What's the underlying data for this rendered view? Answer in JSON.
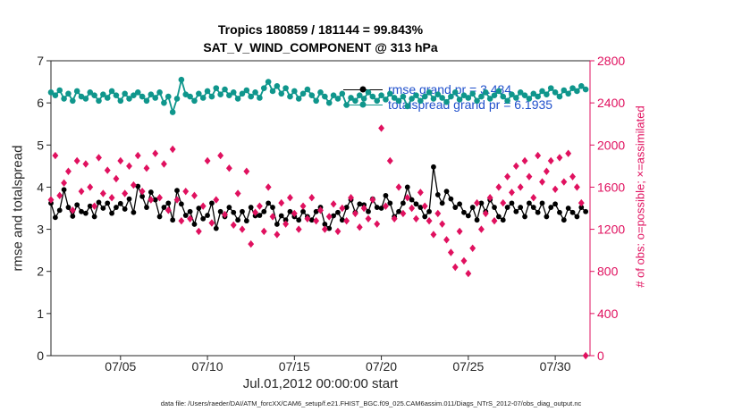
{
  "caption": "data file: /Users/raeder/DAI/ATM_forcXX/CAM6_setup/f.e21.FHIST_BGC.f09_025.CAM6assim.011/Diags_NTrS_2012-07/obs_diag_output.nc",
  "colors": {
    "rmse": "#000000",
    "totalspread": "#0f968c",
    "obs": "#e0115f",
    "legend_text": "#2050cc",
    "axis_text": "#262626"
  },
  "chart_data": {
    "type": "line",
    "title": "Tropics 180859 / 181144 = 99.843%",
    "subtitle": "SAT_V_WIND_COMPONENT @ 313 hPa",
    "xlabel": "Jul.01,2012 00:00:00 start",
    "ylabel_left": "rmse and totalspread",
    "ylabel_right": "# of obs: o=possible; ×=assimilated",
    "x_range_days": [
      0,
      31
    ],
    "x_step_days": 0.25,
    "x_ticks": {
      "days": [
        4,
        9,
        14,
        19,
        24,
        29
      ],
      "labels": [
        "07/05",
        "07/10",
        "07/15",
        "07/20",
        "07/25",
        "07/30"
      ]
    },
    "y_left": {
      "min": 0,
      "max": 7,
      "ticks": [
        0,
        1,
        2,
        3,
        4,
        5,
        6,
        7
      ]
    },
    "y_right": {
      "min": 0,
      "max": 2800,
      "ticks": [
        0,
        400,
        800,
        1200,
        1600,
        2000,
        2400,
        2800
      ]
    },
    "legend": [
      {
        "label": "rmse grand pr = 3.484",
        "color": "#000000"
      },
      {
        "label": "totalspread grand pr = 6.1935",
        "color": "#0f968c"
      }
    ],
    "series": [
      {
        "name": "rmse",
        "axis": "left",
        "color": "#000000",
        "marker": "circle",
        "line": true,
        "values": [
          3.62,
          3.28,
          3.45,
          3.94,
          3.52,
          3.31,
          3.58,
          3.42,
          3.38,
          3.55,
          3.3,
          3.64,
          3.5,
          3.62,
          3.38,
          3.52,
          3.61,
          3.48,
          3.72,
          3.4,
          4.02,
          3.78,
          3.52,
          3.88,
          3.7,
          3.3,
          3.52,
          3.62,
          3.22,
          3.92,
          3.6,
          3.33,
          3.42,
          3.12,
          3.5,
          3.25,
          3.33,
          3.62,
          3.02,
          3.42,
          3.3,
          3.52,
          3.4,
          3.22,
          3.42,
          3.2,
          3.52,
          3.32,
          3.33,
          3.42,
          3.62,
          3.52,
          3.12,
          3.32,
          3.22,
          3.42,
          3.3,
          3.22,
          3.42,
          3.3,
          3.22,
          3.42,
          3.52,
          3.12,
          3.02,
          3.32,
          3.4,
          3.22,
          3.52,
          3.7,
          3.4,
          3.6,
          3.58,
          3.42,
          3.72,
          3.52,
          3.5,
          3.8,
          3.62,
          3.3,
          3.42,
          3.62,
          4.0,
          3.7,
          3.6,
          3.52,
          3.3,
          3.42,
          4.48,
          3.82,
          3.62,
          3.9,
          3.72,
          3.52,
          3.6,
          3.4,
          3.32,
          3.52,
          3.22,
          3.62,
          3.42,
          3.7,
          3.52,
          3.3,
          3.22,
          3.52,
          3.62,
          3.42,
          3.52,
          3.3,
          3.62,
          3.52,
          3.4,
          3.62,
          3.3,
          3.52,
          3.6,
          3.4,
          3.22,
          3.5,
          3.4,
          3.3,
          3.52,
          3.42
        ]
      },
      {
        "name": "totalspread",
        "axis": "left",
        "color": "#0f968c",
        "marker": "circle",
        "line": true,
        "values": [
          6.25,
          6.18,
          6.3,
          6.1,
          6.22,
          6.05,
          6.28,
          6.15,
          6.1,
          6.25,
          6.18,
          6.05,
          6.2,
          6.12,
          6.28,
          6.18,
          6.05,
          6.22,
          6.1,
          6.18,
          6.25,
          6.15,
          6.05,
          6.2,
          6.12,
          6.25,
          6.0,
          6.15,
          5.78,
          6.1,
          6.55,
          6.2,
          6.15,
          6.05,
          6.22,
          6.12,
          6.28,
          6.15,
          6.35,
          6.2,
          6.32,
          6.18,
          6.25,
          6.1,
          6.22,
          6.3,
          6.15,
          6.25,
          6.12,
          6.35,
          6.5,
          6.28,
          6.4,
          6.22,
          6.35,
          6.15,
          6.28,
          6.1,
          6.22,
          6.32,
          6.18,
          6.05,
          6.25,
          6.15,
          6.0,
          6.18,
          6.1,
          6.22,
          5.95,
          6.12,
          6.05,
          6.18,
          6.1,
          6.25,
          6.15,
          6.05,
          6.18,
          6.08,
          6.22,
          6.12,
          6.05,
          6.15,
          5.92,
          6.1,
          6.18,
          6.05,
          6.15,
          6.25,
          6.1,
          6.2,
          6.12,
          6.02,
          6.15,
          6.25,
          6.08,
          6.18,
          6.12,
          6.22,
          6.05,
          6.15,
          6.25,
          6.1,
          6.18,
          6.28,
          6.15,
          6.05,
          6.2,
          6.12,
          6.25,
          6.18,
          6.1,
          6.22,
          6.15,
          6.28,
          6.2,
          6.35,
          6.25,
          6.15,
          6.3,
          6.22,
          6.35,
          6.28,
          6.4,
          6.32
        ]
      },
      {
        "name": "obs_assimilated",
        "axis": "right",
        "color": "#e0115f",
        "marker": "diamond",
        "line": false,
        "values": [
          1480,
          1900,
          1520,
          1640,
          1750,
          1380,
          1850,
          1560,
          1820,
          1600,
          1420,
          1880,
          1540,
          1760,
          1500,
          1680,
          1850,
          1540,
          1800,
          1620,
          1900,
          1560,
          1780,
          1480,
          1920,
          1500,
          1820,
          1380,
          1960,
          1480,
          1280,
          1560,
          1300,
          1520,
          1180,
          1420,
          1850,
          1260,
          1480,
          1900,
          1340,
          1780,
          1240,
          1540,
          1200,
          1750,
          1060,
          1360,
          1420,
          1180,
          1600,
          1320,
          1150,
          1450,
          1250,
          1500,
          1350,
          1200,
          1420,
          1300,
          1500,
          1280,
          1380,
          1200,
          1320,
          1440,
          1180,
          1400,
          1280,
          1500,
          1350,
          1220,
          1400,
          1300,
          1480,
          1250,
          2160,
          1420,
          1850,
          1300,
          1600,
          1350,
          1500,
          1400,
          1300,
          1550,
          1420,
          1280,
          1150,
          1350,
          1250,
          1100,
          980,
          840,
          1180,
          900,
          780,
          1020,
          1450,
          1200,
          1350,
          1500,
          1280,
          1600,
          1450,
          1700,
          1550,
          1800,
          1600,
          1850,
          1700,
          1500,
          1900,
          1650,
          1750,
          1850,
          1580,
          1880,
          1650,
          1920,
          1700,
          1600,
          1450,
          0
        ]
      }
    ]
  }
}
